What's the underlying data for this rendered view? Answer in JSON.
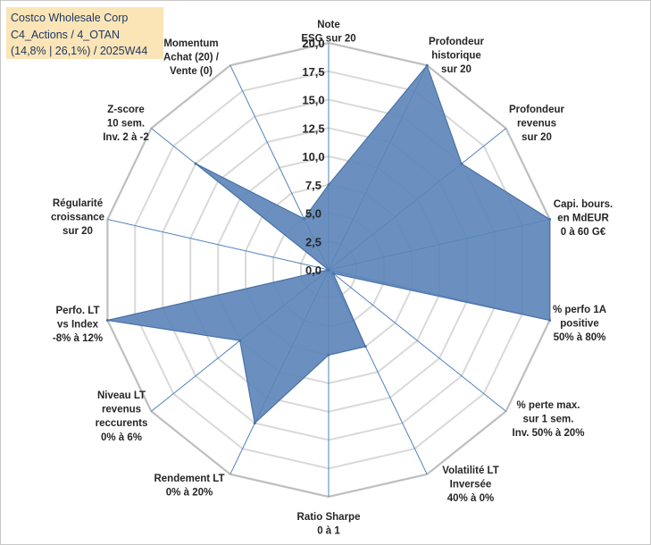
{
  "header": {
    "line1": "Costco Wholesale Corp",
    "line2": "C4_Actions / 4_OTAN",
    "line3": "(14,8% | 26,1%) / 2025W44"
  },
  "chart_data": {
    "type": "radar",
    "title": "Costco Wholesale Corp",
    "rmin": 0,
    "rmax": 20,
    "ticks": [
      0,
      2.5,
      5,
      7.5,
      10,
      12.5,
      15,
      17.5,
      20
    ],
    "tick_labels": [
      "0,0",
      "2,5",
      "5,0",
      "7,5",
      "10,0",
      "12,5",
      "15,0",
      "17,5",
      "20,0"
    ],
    "categories": [
      [
        "Note",
        "ESG sur 20"
      ],
      [
        "Profondeur",
        "historique",
        "sur 20"
      ],
      [
        "Profondeur",
        "revenus",
        "sur 20"
      ],
      [
        "Capi. bours.",
        "en MdEUR",
        "0 à 60 G€"
      ],
      [
        "% perfo 1A",
        "positive",
        "50% à 80%"
      ],
      [
        "% perte max.",
        "sur 1 sem.",
        "Inv. 50% à 20%"
      ],
      [
        "Volatilité LT",
        "Inversée",
        "40% à 0%"
      ],
      [
        "Ratio Sharpe",
        "0 à 1"
      ],
      [
        "Rendement LT",
        "0% à 20%"
      ],
      [
        "Niveau LT",
        "revenus",
        "reccurents",
        "0% à 6%"
      ],
      [
        "Perfo. LT",
        "vs Index",
        "-8% à 12%"
      ],
      [
        "Régularité",
        "croissance",
        "sur 20"
      ],
      [
        "Z-score",
        "10 sem.",
        "Inv. 2 à -2"
      ],
      [
        "Momentum",
        "Achat (20) /",
        "Vente (0)"
      ]
    ],
    "series": [
      {
        "name": "Costco Wholesale Corp",
        "color": "#5b84b8",
        "values": [
          7.5,
          20,
          15,
          20,
          20,
          0.5,
          7.5,
          7.5,
          15,
          10,
          20,
          0,
          15,
          5
        ]
      }
    ]
  }
}
